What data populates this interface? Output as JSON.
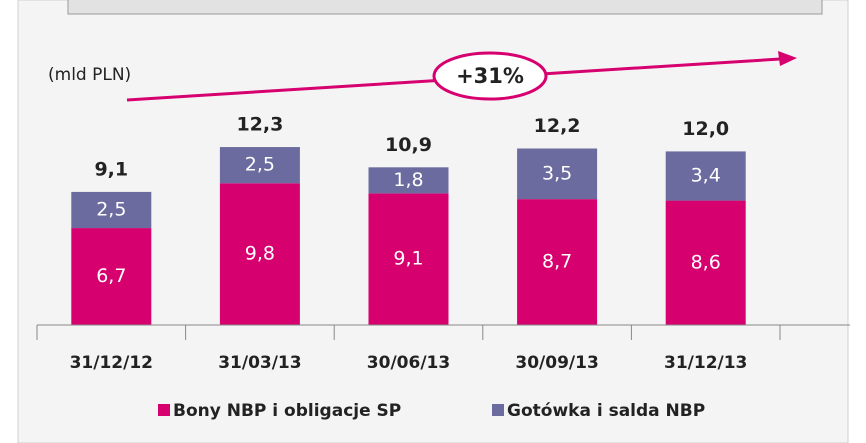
{
  "chart_data": {
    "type": "stacked_bar",
    "unit_label": "(mld PLN)",
    "annotation": "+31%",
    "categories": [
      "31/12/12",
      "31/03/13",
      "30/06/13",
      "30/09/13",
      "31/12/13"
    ],
    "series": [
      {
        "name": "Bony NBP i obligacje SP",
        "color": "#d6006f",
        "values": [
          6.7,
          9.8,
          9.1,
          8.7,
          8.6
        ],
        "value_labels": [
          "6,7",
          "9,8",
          "9,1",
          "8,7",
          "8,6"
        ]
      },
      {
        "name": "Gotówka i salda NBP",
        "color": "#6b6b9f",
        "values": [
          2.5,
          2.5,
          1.8,
          3.5,
          3.4
        ],
        "value_labels": [
          "2,5",
          "2,5",
          "1,8",
          "3,5",
          "3,4"
        ]
      }
    ],
    "totals": [
      9.1,
      12.3,
      10.9,
      12.2,
      12.0
    ],
    "total_labels": [
      "9,1",
      "12,3",
      "10,9",
      "12,2",
      "12,0"
    ],
    "ylim": [
      0,
      15
    ]
  }
}
